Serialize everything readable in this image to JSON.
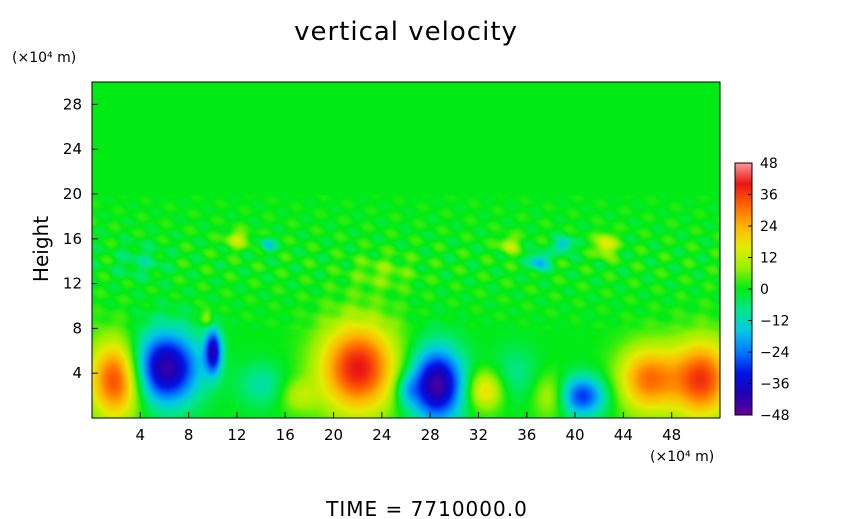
{
  "chart_data": {
    "type": "heatmap",
    "title": "vertical velocity",
    "ylabel": "Height",
    "xlabel": "",
    "y_unit": "(×10⁴ m)",
    "x_unit": "(×10⁴ m)",
    "footer": "TIME = 7710000.0",
    "xlim": [
      0,
      52
    ],
    "ylim": [
      0,
      30
    ],
    "x_ticks": [
      4,
      8,
      12,
      16,
      20,
      24,
      28,
      32,
      36,
      40,
      44,
      48
    ],
    "y_ticks": [
      4,
      8,
      12,
      16,
      20,
      24,
      28
    ],
    "colorbar": {
      "ticks": [
        48,
        36,
        24,
        12,
        0,
        -12,
        -24,
        -36,
        -48
      ],
      "min": -48,
      "max": 48
    },
    "background_value": 0,
    "features": [
      {
        "x": 2,
        "y": 3.5,
        "value": 38,
        "rx": 2.2,
        "ry": 3.5
      },
      {
        "x": 6,
        "y": 4.5,
        "value": -44,
        "rx": 2.8,
        "ry": 3.2
      },
      {
        "x": 10,
        "y": 6,
        "value": -36,
        "rx": 0.7,
        "ry": 2.0
      },
      {
        "x": 14,
        "y": 3,
        "value": -10,
        "rx": 2.0,
        "ry": 2.0
      },
      {
        "x": 22,
        "y": 4.5,
        "value": 40,
        "rx": 3.2,
        "ry": 4.0
      },
      {
        "x": 28.5,
        "y": 3,
        "value": -45,
        "rx": 2.2,
        "ry": 3.2
      },
      {
        "x": 32.5,
        "y": 2.5,
        "value": 20,
        "rx": 1.5,
        "ry": 1.8
      },
      {
        "x": 35,
        "y": 4,
        "value": -8,
        "rx": 2.0,
        "ry": 2.5
      },
      {
        "x": 38,
        "y": 2,
        "value": 14,
        "rx": 1.5,
        "ry": 2.0
      },
      {
        "x": 40.5,
        "y": 2,
        "value": -30,
        "rx": 2.0,
        "ry": 1.8
      },
      {
        "x": 46,
        "y": 3.5,
        "value": 30,
        "rx": 2.5,
        "ry": 3.0
      },
      {
        "x": 50.5,
        "y": 3.5,
        "value": 36,
        "rx": 2.5,
        "ry": 3.5
      },
      {
        "x": 17,
        "y": 2,
        "value": 10,
        "rx": 1.5,
        "ry": 1.5
      },
      {
        "x": 26,
        "y": 2.5,
        "value": -12,
        "rx": 1.0,
        "ry": 1.5
      },
      {
        "x": 14.5,
        "y": 15.5,
        "value": -16,
        "rx": 0.6,
        "ry": 0.6
      },
      {
        "x": 12,
        "y": 16,
        "value": 12,
        "rx": 1.0,
        "ry": 0.8
      },
      {
        "x": 37,
        "y": 14,
        "value": -20,
        "rx": 0.8,
        "ry": 0.8
      },
      {
        "x": 39,
        "y": 15.5,
        "value": -18,
        "rx": 0.7,
        "ry": 0.7
      },
      {
        "x": 42.5,
        "y": 15.5,
        "value": 18,
        "rx": 0.8,
        "ry": 1.0
      },
      {
        "x": 34.5,
        "y": 15.5,
        "value": 12,
        "rx": 0.8,
        "ry": 0.8
      },
      {
        "x": 9.5,
        "y": 9,
        "value": 12,
        "rx": 0.5,
        "ry": 0.8
      },
      {
        "x": 4,
        "y": 14,
        "value": -6,
        "rx": 2.0,
        "ry": 1.5
      },
      {
        "x": 24,
        "y": 13,
        "value": 6,
        "rx": 2.5,
        "ry": 1.5
      }
    ]
  }
}
